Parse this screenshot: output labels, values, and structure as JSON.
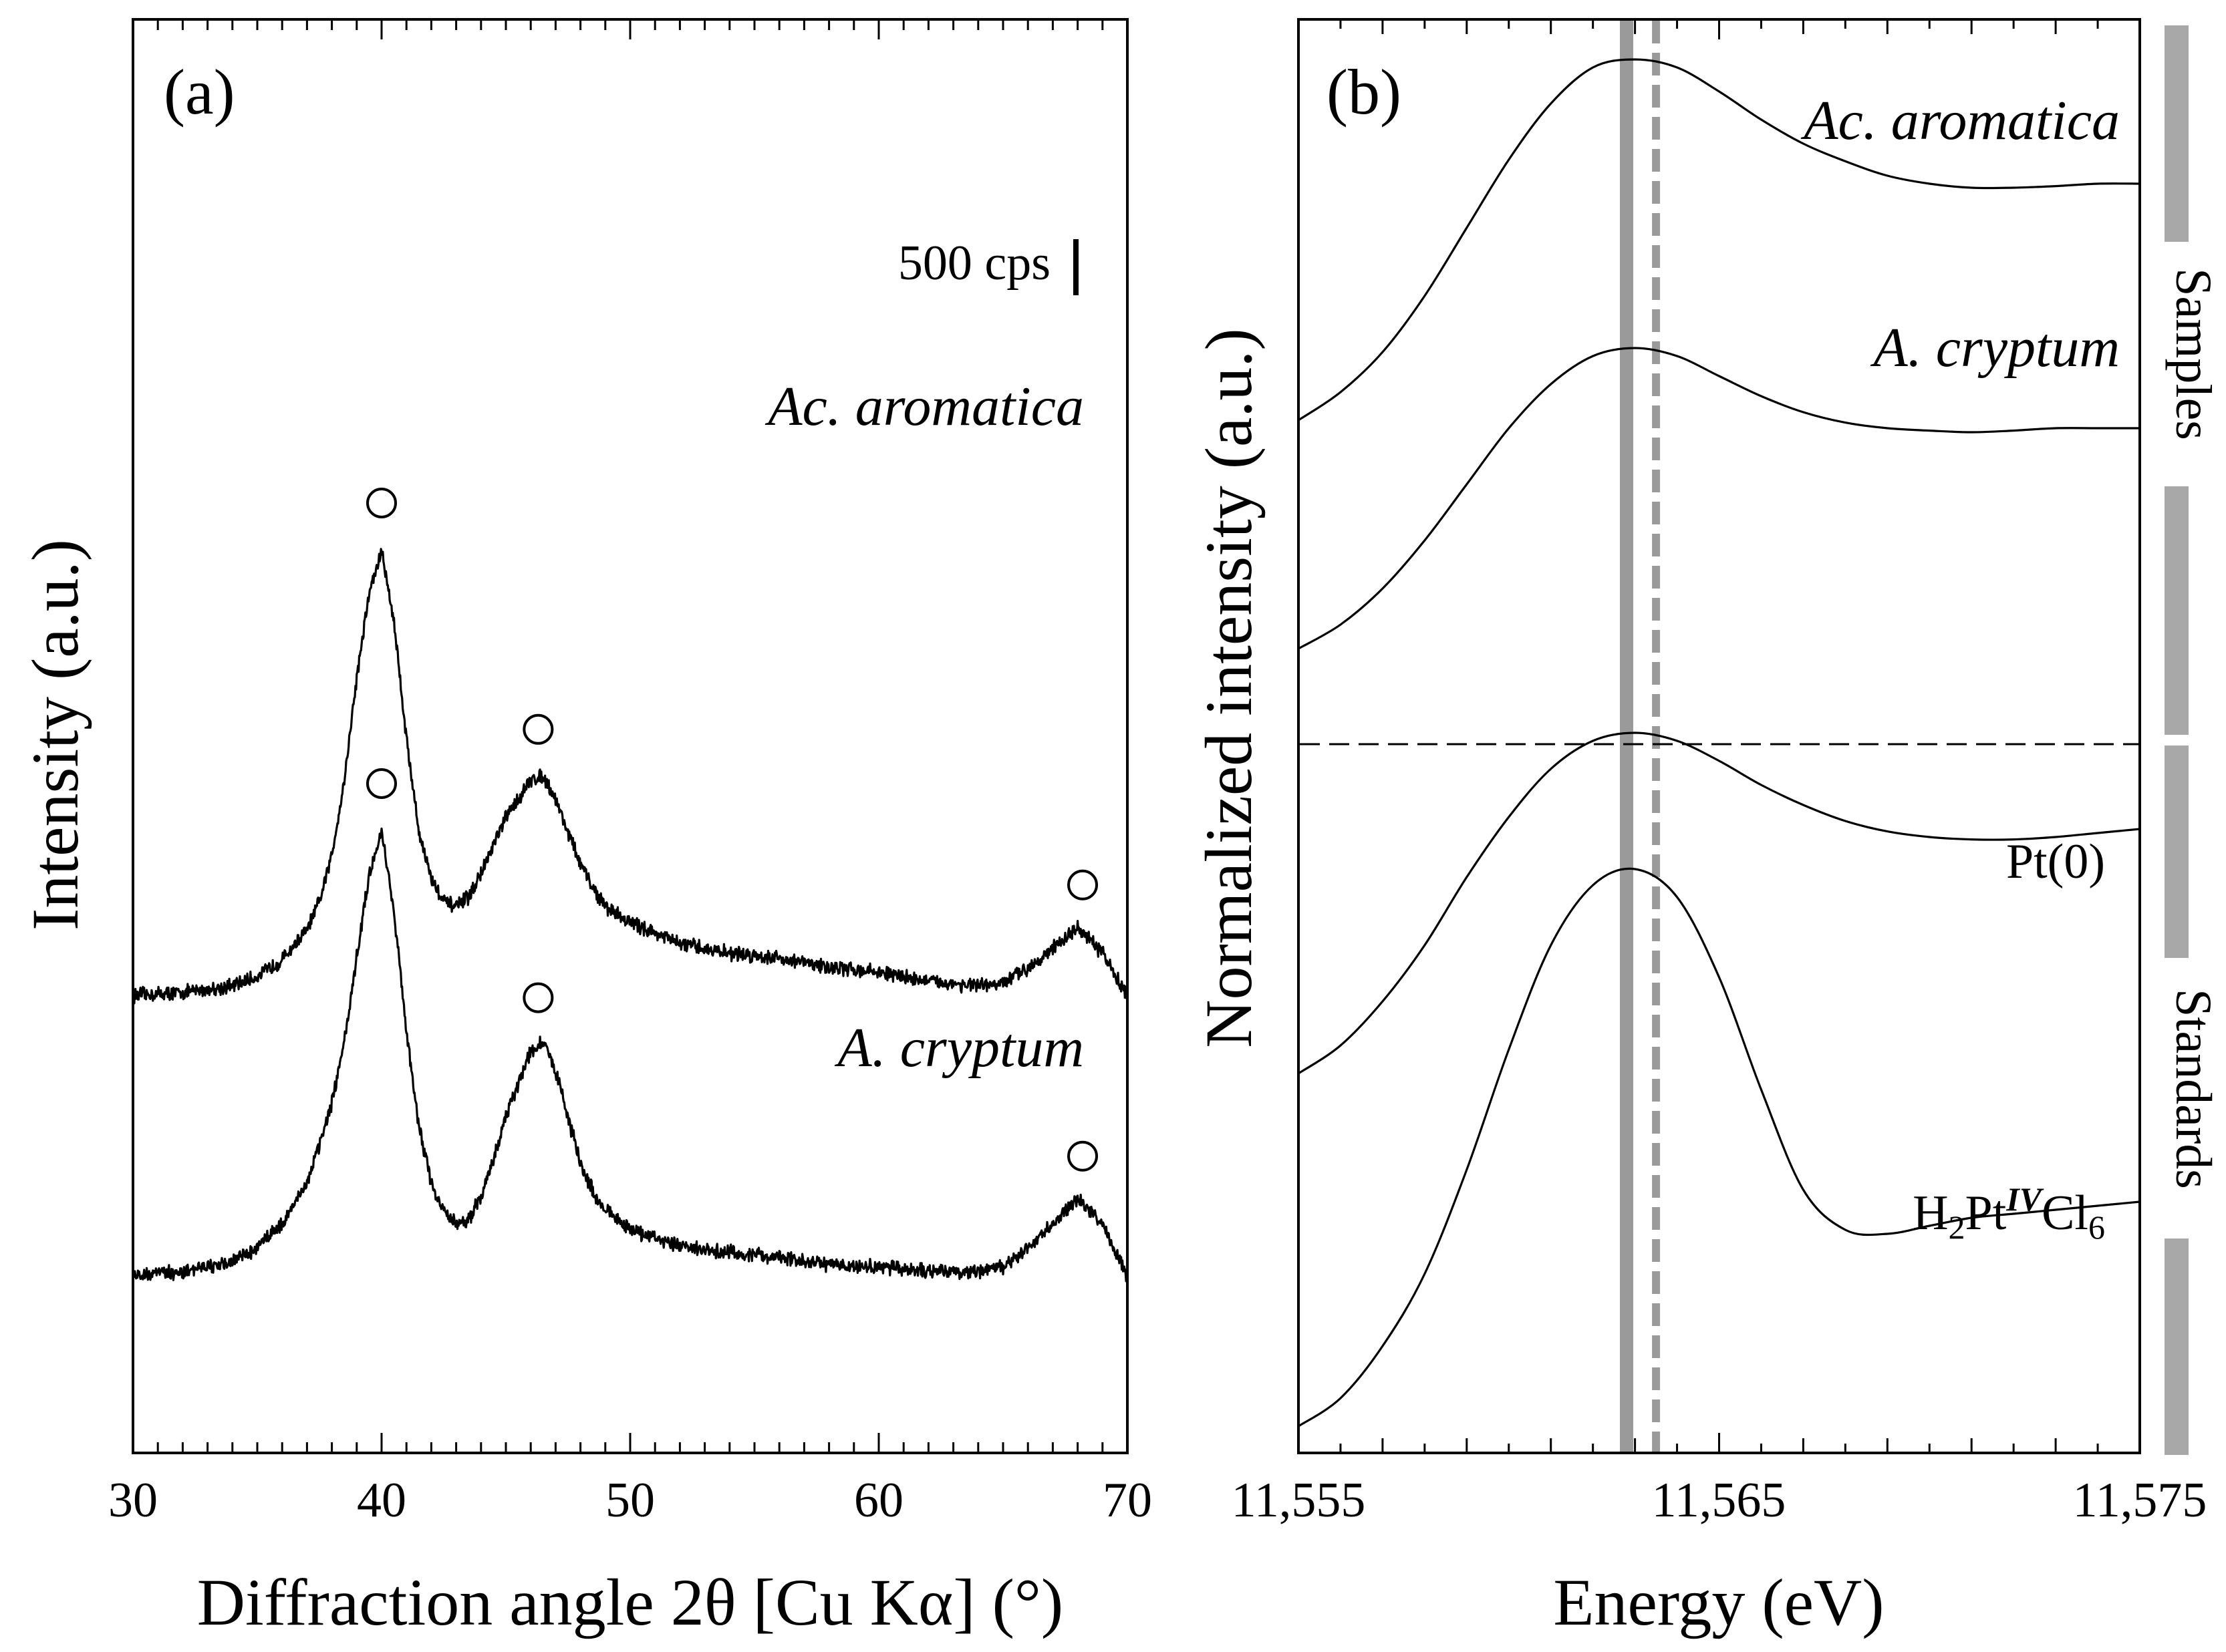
{
  "chart_data": [
    {
      "type": "line",
      "panel_label": "(a)",
      "title": "",
      "xlabel": "Diffraction angle 2θ [Cu Kα] (°)",
      "ylabel": "Intensity (a.u.)",
      "xlim": [
        30,
        70
      ],
      "x_ticks": [
        30,
        40,
        50,
        60,
        70
      ],
      "x_tick_labels": [
        "30",
        "40",
        "50",
        "60",
        "70"
      ],
      "grid": false,
      "scale_bar_label": "500 cps",
      "peak_marker": "○",
      "series": [
        {
          "name": "Ac. aromatica",
          "baseline_offset": 3,
          "x": [
            30,
            32,
            34,
            35,
            36,
            37,
            37.5,
            38,
            38.5,
            39,
            39.5,
            40,
            40.5,
            41,
            41.5,
            42,
            42.5,
            43,
            43.5,
            44,
            44.5,
            45,
            45.5,
            46,
            46.5,
            47,
            47.5,
            48,
            48.5,
            49,
            50,
            51,
            52,
            54,
            56,
            58,
            60,
            62,
            64,
            65,
            66,
            67,
            68,
            69,
            70
          ],
          "values": [
            0.0,
            0.03,
            0.1,
            0.2,
            0.38,
            0.7,
            1.0,
            1.5,
            2.3,
            3.4,
            4.3,
            4.75,
            4.0,
            2.75,
            1.75,
            1.25,
            1.0,
            0.95,
            1.05,
            1.3,
            1.6,
            1.9,
            2.1,
            2.3,
            2.35,
            2.1,
            1.75,
            1.4,
            1.15,
            0.95,
            0.78,
            0.67,
            0.55,
            0.45,
            0.4,
            0.3,
            0.25,
            0.15,
            0.1,
            0.12,
            0.3,
            0.5,
            0.72,
            0.45,
            0.0
          ],
          "peak_markers_x": [
            40,
            46.3,
            68.2
          ]
        },
        {
          "name": "A. cryptum",
          "baseline_offset": 0,
          "x": [
            30,
            32,
            34,
            35,
            36,
            37,
            37.5,
            38,
            38.5,
            39,
            39.5,
            40,
            40.5,
            41,
            41.5,
            42,
            42.5,
            43,
            43.5,
            44,
            44.5,
            45,
            45.5,
            46,
            46.5,
            47,
            47.5,
            48,
            48.5,
            49,
            50,
            51,
            52,
            54,
            56,
            58,
            60,
            62,
            64,
            65,
            66,
            67,
            68,
            69,
            70
          ],
          "values": [
            0.0,
            0.05,
            0.15,
            0.3,
            0.55,
            1.0,
            1.4,
            1.85,
            2.5,
            3.4,
            4.3,
            4.75,
            3.9,
            2.6,
            1.6,
            1.0,
            0.7,
            0.55,
            0.6,
            0.85,
            1.25,
            1.7,
            2.05,
            2.4,
            2.5,
            2.2,
            1.7,
            1.2,
            0.9,
            0.7,
            0.5,
            0.4,
            0.32,
            0.25,
            0.2,
            0.12,
            0.1,
            0.05,
            0.05,
            0.1,
            0.3,
            0.55,
            0.82,
            0.55,
            0.0
          ],
          "peak_markers_x": [
            40,
            46.3,
            68.2
          ]
        }
      ]
    },
    {
      "type": "line",
      "panel_label": "(b)",
      "title": "",
      "xlabel": "Energy (eV)",
      "ylabel": "Normalized intensity (a.u.)",
      "xlim": [
        11555,
        11575
      ],
      "x_ticks": [
        11555,
        11565,
        11575
      ],
      "x_tick_labels": [
        "11,555",
        "11,565",
        "11,575"
      ],
      "grid": false,
      "reference_lines": [
        {
          "style": "solid",
          "x": 11562.8
        },
        {
          "style": "dashed",
          "x": 11563.5
        }
      ],
      "group_labels": [
        "Samples",
        "Standards"
      ],
      "series": [
        {
          "name": "Ac. aromatica",
          "group": "Samples",
          "x": [
            11555,
            11556,
            11557,
            11558,
            11559,
            11560,
            11561,
            11562,
            11563,
            11564,
            11565,
            11566,
            11567,
            11568,
            11569,
            11570,
            11571,
            11572,
            11573,
            11574,
            11575
          ],
          "values": [
            12.55,
            12.9,
            13.4,
            14.1,
            14.95,
            15.8,
            16.5,
            16.95,
            17.05,
            16.95,
            16.65,
            16.3,
            16.0,
            15.78,
            15.6,
            15.5,
            15.45,
            15.45,
            15.47,
            15.5,
            15.5
          ]
        },
        {
          "name": "A. cryptum",
          "group": "Samples",
          "x": [
            11555,
            11556,
            11557,
            11558,
            11559,
            11560,
            11561,
            11562,
            11563,
            11564,
            11565,
            11566,
            11567,
            11568,
            11569,
            11570,
            11571,
            11572,
            11573,
            11574,
            11575
          ],
          "values": [
            9.7,
            10.0,
            10.45,
            11.05,
            11.75,
            12.45,
            13.0,
            13.35,
            13.45,
            13.35,
            13.1,
            12.85,
            12.65,
            12.52,
            12.45,
            12.42,
            12.4,
            12.42,
            12.45,
            12.45,
            12.45
          ]
        },
        {
          "name": "Pt(0)",
          "group": "Standards",
          "x": [
            11555,
            11556,
            11557,
            11558,
            11559,
            11560,
            11561,
            11562,
            11563,
            11564,
            11565,
            11566,
            11567,
            11568,
            11569,
            11570,
            11571,
            11572,
            11573,
            11574,
            11575
          ],
          "values": [
            4.4,
            4.75,
            5.3,
            6.0,
            6.85,
            7.6,
            8.2,
            8.55,
            8.65,
            8.55,
            8.3,
            8.0,
            7.75,
            7.55,
            7.42,
            7.35,
            7.32,
            7.32,
            7.35,
            7.4,
            7.45
          ]
        },
        {
          "name": "H2PtIVCl6",
          "group": "Standards",
          "x": [
            11555,
            11556,
            11557,
            11558,
            11559,
            11560,
            11561,
            11562,
            11563,
            11564,
            11565,
            11566,
            11567,
            11568,
            11569,
            11570,
            11571,
            11572,
            11573,
            11574,
            11575
          ],
          "values": [
            0.0,
            0.35,
            1.0,
            1.9,
            3.2,
            4.7,
            6.0,
            6.75,
            6.95,
            6.6,
            5.6,
            4.2,
            2.95,
            2.45,
            2.4,
            2.5,
            2.6,
            2.65,
            2.7,
            2.75,
            2.8
          ]
        }
      ]
    }
  ],
  "labels": {
    "panel_a": "(a)",
    "panel_b": "(b)",
    "scale_bar": "500 cps",
    "series_a1": "Ac. aromatica",
    "series_a2": "A. cryptum",
    "series_b1": "Ac. aromatica",
    "series_b2": "A. cryptum",
    "std_pt0": "Pt(0)",
    "std_h2_H": "H",
    "std_h2_2": "2",
    "std_h2_Pt": "Pt",
    "std_h2_IV": "IV",
    "std_h2_Cl": "Cl",
    "std_h2_6": "6",
    "group_samples": "Samples",
    "group_standards": "Standards",
    "xlabel_a": "Diffraction angle 2θ [Cu Kα] (°)",
    "ylabel_a": "Intensity (a.u.)",
    "xlabel_b": "Energy (eV)",
    "ylabel_b": "Normalized intensity (a.u.)",
    "tick_a_30": "30",
    "tick_a_40": "40",
    "tick_a_50": "50",
    "tick_a_60": "60",
    "tick_a_70": "70",
    "tick_b_1": "11,555",
    "tick_b_2": "11,565",
    "tick_b_3": "11,575"
  }
}
